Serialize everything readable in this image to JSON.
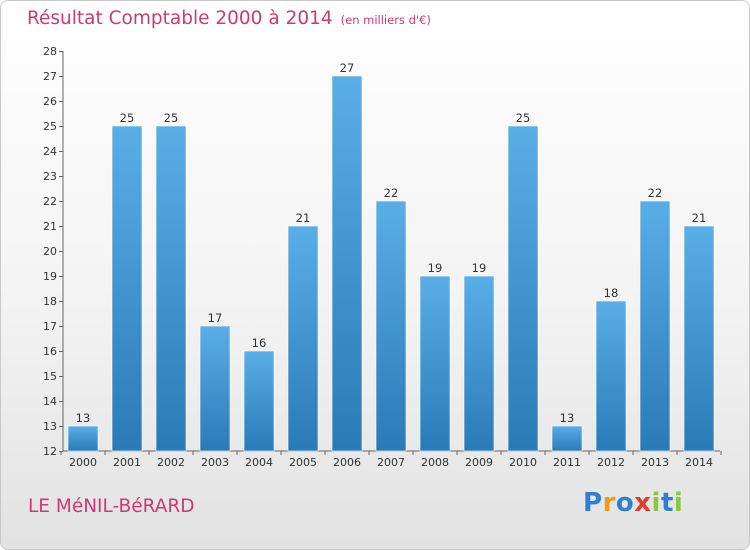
{
  "header": {
    "title": "Résultat Comptable 2000 à 2014",
    "unit_note": "(en milliers d'€)"
  },
  "footer": {
    "commune": "LE MéNIL-BéRARD",
    "logo_letters": [
      "P",
      "r",
      "o",
      "x",
      "i",
      "t",
      "i"
    ]
  },
  "colors": {
    "accent": "#cc3a73",
    "bar_top": "#5aaee6",
    "bar_bottom": "#2a7ab8"
  },
  "chart_data": {
    "type": "bar",
    "title": "Résultat Comptable 2000 à 2014",
    "subtitle": "(en milliers d'€)",
    "xlabel": "",
    "ylabel": "",
    "categories": [
      "2000",
      "2001",
      "2002",
      "2003",
      "2004",
      "2005",
      "2006",
      "2007",
      "2008",
      "2009",
      "2010",
      "2011",
      "2012",
      "2013",
      "2014"
    ],
    "values": [
      13,
      25,
      25,
      17,
      16,
      21,
      27,
      22,
      19,
      19,
      25,
      13,
      18,
      22,
      21
    ],
    "ylim": [
      12,
      28
    ],
    "yticks": [
      12,
      13,
      14,
      15,
      16,
      17,
      18,
      19,
      20,
      21,
      22,
      23,
      24,
      25,
      26,
      27,
      28
    ],
    "grid": false,
    "legend": "none"
  }
}
